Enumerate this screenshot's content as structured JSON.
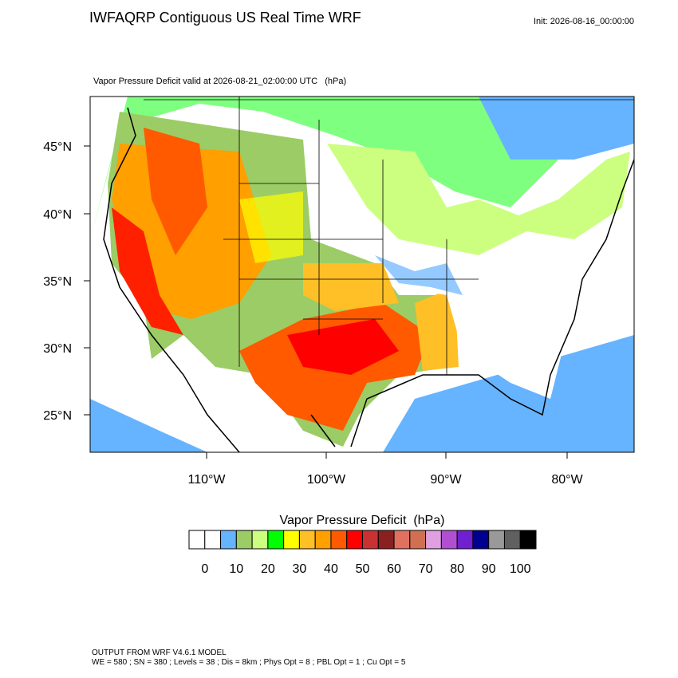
{
  "header": {
    "title": "IWFAQRP Contiguous US Real Time WRF",
    "init": "Init: 2026-08-16_00:00:00"
  },
  "map": {
    "subtitle": "Vapor Pressure Deficit valid at 2026-08-21_02:00:00 UTC   (hPa)",
    "lat_labels": [
      "45°N",
      "40°N",
      "35°N",
      "30°N",
      "25°N"
    ],
    "lon_labels": [
      "110°W",
      "100°W",
      "90°W",
      "80°W"
    ]
  },
  "colorbar": {
    "title": "Vapor Pressure Deficit  (hPa)",
    "colors": [
      "#ffffff",
      "#ffffff",
      "#66b3ff",
      "#9ccc66",
      "#ccff80",
      "#00ff00",
      "#ffff00",
      "#ffbf26",
      "#ff9f00",
      "#ff5a00",
      "#ff0000",
      "#c83232",
      "#8b2020",
      "#e07060",
      "#d07050",
      "#e0a0e0",
      "#b050d0",
      "#7020d0",
      "#000090",
      "#999999",
      "#606060",
      "#000000"
    ],
    "labels": [
      "0",
      "10",
      "20",
      "30",
      "40",
      "50",
      "60",
      "70",
      "80",
      "90",
      "100"
    ]
  },
  "footer": {
    "lines": [
      "OUTPUT FROM WRF V4.6.1 MODEL",
      "WE = 580 ; SN = 380 ; Levels = 38 ; Dis = 8km ; Phys Opt = 8 ; PBL Opt = 1 ; Cu Opt = 5"
    ]
  }
}
